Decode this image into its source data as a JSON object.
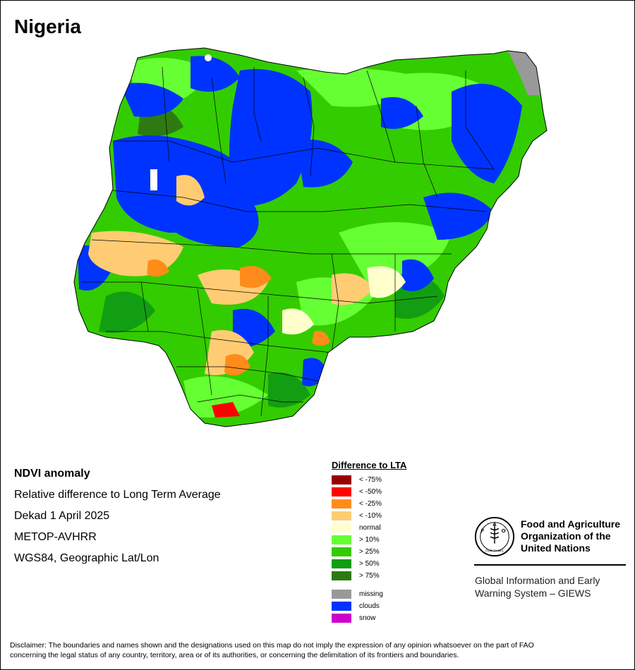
{
  "title": "Nigeria",
  "info": {
    "line1": "NDVI anomaly",
    "line2": "Relative difference to Long Term Average",
    "line3": "Dekad 1 April 2025",
    "line4": "METOP-AVHRR",
    "line5": "WGS84, Geographic Lat/Lon"
  },
  "legend": {
    "title": "Difference to LTA",
    "items": [
      {
        "label": "< -75%",
        "color": "#990000"
      },
      {
        "label": "< -50%",
        "color": "#ff0000"
      },
      {
        "label": "< -25%",
        "color": "#ff8c1a"
      },
      {
        "label": "< -10%",
        "color": "#ffcc73"
      },
      {
        "label": "normal",
        "color": "#ffffcc"
      },
      {
        "label": "> 10%",
        "color": "#66ff33"
      },
      {
        "label": "> 25%",
        "color": "#33cc00"
      },
      {
        "label": "> 50%",
        "color": "#129e12"
      },
      {
        "label": "> 75%",
        "color": "#2e7a12"
      }
    ],
    "extra": [
      {
        "label": "missing",
        "color": "#999999"
      },
      {
        "label": "clouds",
        "color": "#0033ff"
      },
      {
        "label": "snow",
        "color": "#cc00cc"
      }
    ]
  },
  "org": {
    "line1": "Food and Agriculture",
    "line2": "Organization of the",
    "line3": "United Nations",
    "emblem_text": "FAO",
    "emblem_motto": "FIAT PANIS",
    "giews_line1": "Global Information and Early",
    "giews_line2": "Warning System – GIEWS"
  },
  "disclaimer": {
    "line1": "Disclaimer: The boundaries and names shown and the designations used on this map do not imply the expression of any opinion whatsoever on the part of FAO",
    "line2": "concerning the legal status of any country, territory, area or of its authorities, or concerning the delimitation of its frontiers and boundaries."
  }
}
